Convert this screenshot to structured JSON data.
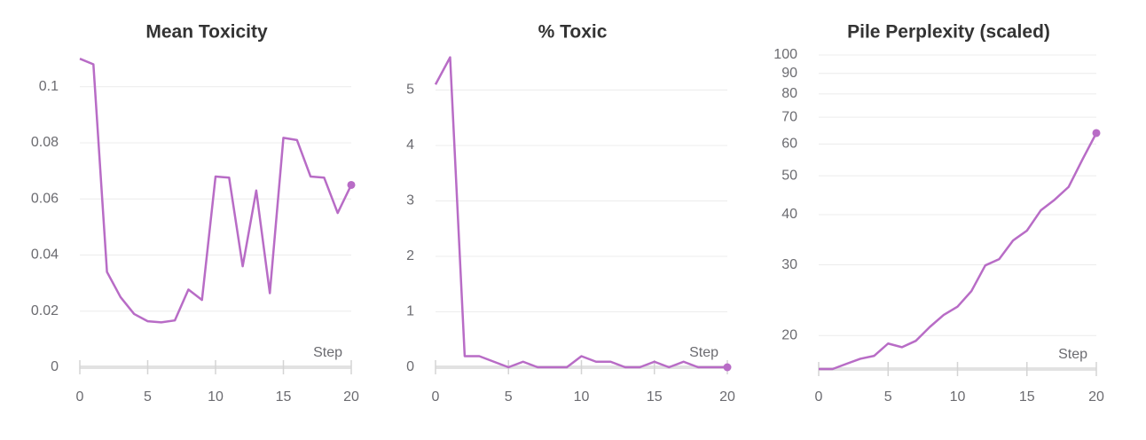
{
  "chart_data": [
    {
      "type": "line",
      "title": "Mean Toxicity",
      "x_label": "Step",
      "color": "#b86cc6",
      "x": [
        0,
        1,
        2,
        3,
        4,
        5,
        6,
        7,
        8,
        9,
        10,
        11,
        12,
        13,
        14,
        15,
        16,
        17,
        18,
        19,
        20
      ],
      "values": [
        0.11,
        0.108,
        0.034,
        0.025,
        0.019,
        0.0164,
        0.016,
        0.0167,
        0.0277,
        0.024,
        0.068,
        0.0676,
        0.036,
        0.063,
        0.0264,
        0.0818,
        0.081,
        0.068,
        0.0676,
        0.055,
        0.065
      ],
      "xlim": [
        0,
        20
      ],
      "xticks": [
        0,
        5,
        10,
        15,
        20
      ],
      "ylim": [
        0,
        0.111
      ],
      "yticks": [
        0,
        0.02,
        0.04,
        0.06,
        0.08,
        0.1
      ],
      "grid": true,
      "log": false
    },
    {
      "type": "line",
      "title": "% Toxic",
      "x_label": "Step",
      "color": "#b86cc6",
      "x": [
        0,
        1,
        2,
        3,
        4,
        5,
        6,
        7,
        8,
        9,
        10,
        11,
        12,
        13,
        14,
        15,
        16,
        17,
        18,
        19,
        20
      ],
      "values": [
        5.1,
        5.59,
        0.2,
        0.2,
        0.1,
        0,
        0.1,
        0,
        0,
        0,
        0.2,
        0.1,
        0.1,
        0,
        0,
        0.1,
        0,
        0.1,
        0,
        0,
        0
      ],
      "xlim": [
        0,
        20
      ],
      "xticks": [
        0,
        5,
        10,
        15,
        20
      ],
      "ylim": [
        0,
        5.6
      ],
      "yticks": [
        0,
        1,
        2,
        3,
        4,
        5
      ],
      "grid": true,
      "log": false
    },
    {
      "type": "line",
      "title": "Pile Perplexity (scaled)",
      "x_label": "Step",
      "color": "#b86cc6",
      "x": [
        0,
        1,
        2,
        3,
        4,
        5,
        6,
        7,
        8,
        9,
        10,
        11,
        12,
        13,
        14,
        15,
        16,
        17,
        18,
        19,
        20
      ],
      "values": [
        16.5,
        16.5,
        17.0,
        17.5,
        17.8,
        19.1,
        18.7,
        19.4,
        21.0,
        22.5,
        23.6,
        25.8,
        29.9,
        31.0,
        34.5,
        36.5,
        41.0,
        43.6,
        46.9,
        54.9,
        63.9
      ],
      "xlim": [
        0,
        20
      ],
      "xticks": [
        0,
        5,
        10,
        15,
        20
      ],
      "ylim": [
        16.5,
        100
      ],
      "yticks": [
        20,
        30,
        40,
        50,
        60,
        70,
        80,
        90,
        100
      ],
      "grid": true,
      "log": true
    }
  ]
}
